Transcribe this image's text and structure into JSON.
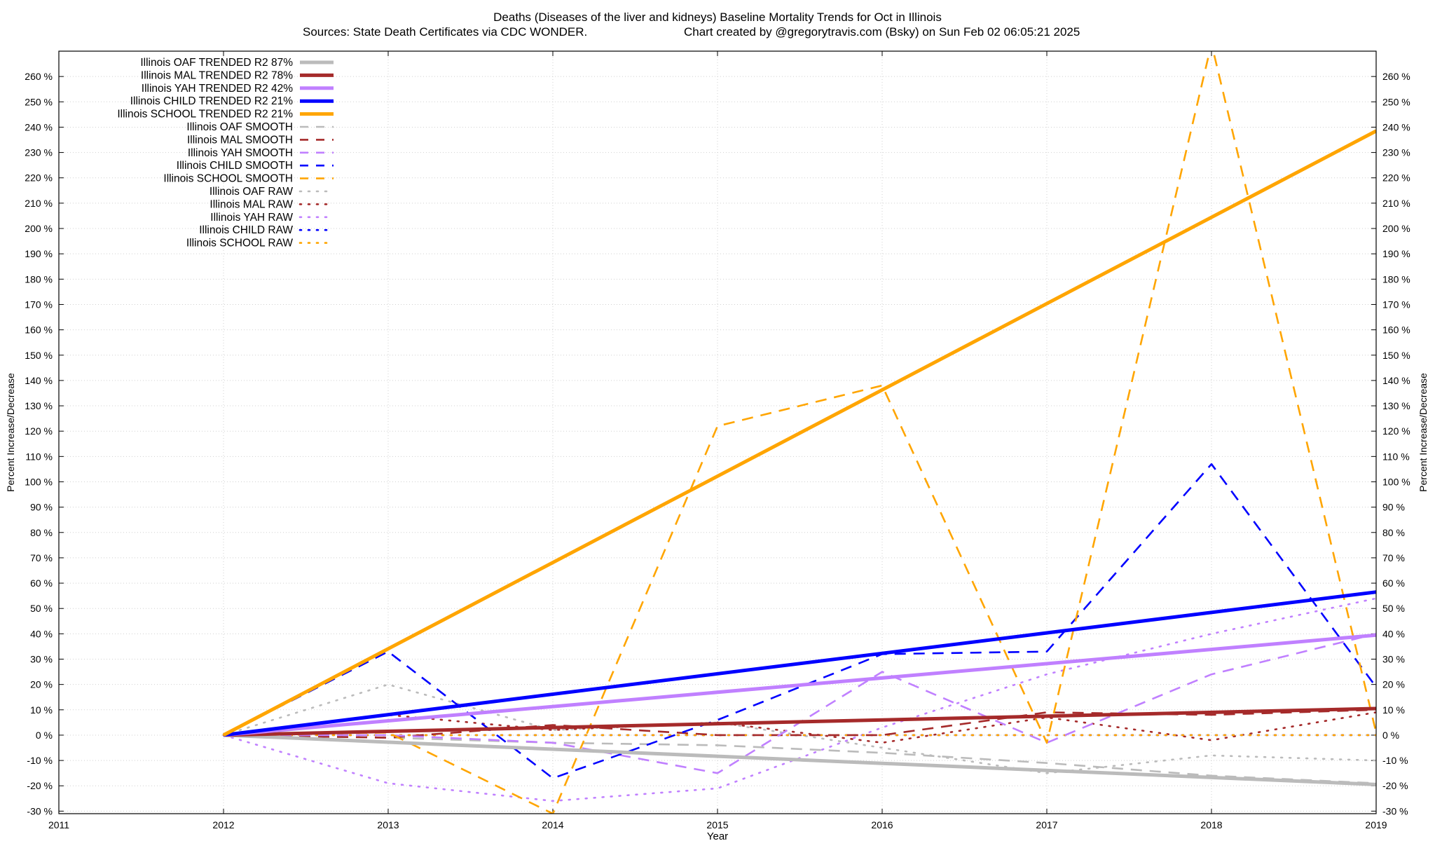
{
  "chart_data": {
    "type": "line",
    "title": "Deaths (Diseases of the liver and kidneys)  Baseline Mortality Trends for Oct in Illinois",
    "subtitle_left": "Sources: State Death Certificates via CDC WONDER.",
    "subtitle_right": "Chart created by @gregorytravis.com (Bsky) on Sun Feb 02 06:05:21 2025",
    "xlabel": "Year",
    "ylabel": "Percent Increase/Decrease",
    "y2label": "Percent Increase/Decrease",
    "xlim": [
      2011,
      2019
    ],
    "ylim": [
      -31,
      270
    ],
    "xticks": [
      2011,
      2012,
      2013,
      2014,
      2015,
      2016,
      2017,
      2018,
      2019
    ],
    "yticks": [
      -30,
      -20,
      -10,
      0,
      10,
      20,
      30,
      40,
      50,
      60,
      70,
      80,
      90,
      100,
      110,
      120,
      130,
      140,
      150,
      160,
      170,
      180,
      190,
      200,
      210,
      220,
      230,
      240,
      250,
      260
    ],
    "ytick_suffix": " %",
    "grid": true,
    "legend_position": "top-left",
    "series": [
      {
        "name": "Illinois OAF TRENDED R2  87%",
        "style": "solid",
        "color": "#bbbbbb",
        "x": [
          2012,
          2019
        ],
        "y": [
          0,
          -19.5
        ]
      },
      {
        "name": "Illinois MAL TRENDED R2  78%",
        "style": "solid",
        "color": "#a52a2a",
        "x": [
          2012,
          2019
        ],
        "y": [
          0,
          10.5
        ]
      },
      {
        "name": "Illinois YAH TRENDED R2  42%",
        "style": "solid",
        "color": "#c080ff",
        "x": [
          2012,
          2019
        ],
        "y": [
          0,
          39.5
        ]
      },
      {
        "name": "Illinois CHILD TRENDED R2  21%",
        "style": "solid",
        "color": "#0000ff",
        "x": [
          2012,
          2019
        ],
        "y": [
          0,
          56.5
        ]
      },
      {
        "name": "Illinois SCHOOL TRENDED R2  21%",
        "style": "solid",
        "color": "#ffa500",
        "x": [
          2012,
          2019
        ],
        "y": [
          0,
          238.5
        ]
      },
      {
        "name": "Illinois OAF SMOOTH",
        "style": "dashed",
        "color": "#bbbbbb",
        "x": [
          2012,
          2013,
          2014,
          2015,
          2016,
          2017,
          2018,
          2019
        ],
        "y": [
          0,
          -1,
          -3,
          -4,
          -7,
          -11,
          -16,
          -19
        ]
      },
      {
        "name": "Illinois MAL SMOOTH",
        "style": "dashed",
        "color": "#a52a2a",
        "x": [
          2012,
          2013,
          2014,
          2015,
          2016,
          2017,
          2018,
          2019
        ],
        "y": [
          0,
          -1,
          4,
          0,
          0,
          9,
          8,
          10
        ]
      },
      {
        "name": "Illinois YAH SMOOTH",
        "style": "dashed",
        "color": "#c080ff",
        "x": [
          2012,
          2013,
          2014,
          2015,
          2016,
          2017,
          2018,
          2019
        ],
        "y": [
          0,
          0,
          -3,
          -15,
          25,
          -3,
          24,
          40
        ]
      },
      {
        "name": "Illinois CHILD SMOOTH",
        "style": "dashed",
        "color": "#0000ff",
        "x": [
          2012,
          2013,
          2014,
          2015,
          2016,
          2017,
          2018,
          2019
        ],
        "y": [
          0,
          33,
          -17,
          6,
          32,
          33,
          107,
          19
        ]
      },
      {
        "name": "Illinois SCHOOL SMOOTH",
        "style": "dashed",
        "color": "#ffa500",
        "x": [
          2012,
          2013,
          2014,
          2015,
          2016,
          2017,
          2018,
          2019
        ],
        "y": [
          0,
          1,
          -31,
          122,
          138,
          -3,
          273,
          1
        ]
      },
      {
        "name": "Illinois OAF RAW",
        "style": "dotted",
        "color": "#bbbbbb",
        "x": [
          2012,
          2013,
          2014,
          2015,
          2016,
          2017,
          2018,
          2019
        ],
        "y": [
          0,
          20,
          2,
          5,
          -5,
          -15,
          -8,
          -10
        ]
      },
      {
        "name": "Illinois MAL RAW",
        "style": "dotted",
        "color": "#a52a2a",
        "x": [
          2012,
          2013,
          2014,
          2015,
          2016,
          2017,
          2018,
          2019
        ],
        "y": [
          0,
          8,
          2,
          5,
          -3,
          7,
          -2,
          9
        ]
      },
      {
        "name": "Illinois YAH RAW",
        "style": "dotted",
        "color": "#c080ff",
        "x": [
          2012,
          2013,
          2014,
          2015,
          2016,
          2017,
          2018,
          2019
        ],
        "y": [
          0,
          -19,
          -26,
          -21,
          3,
          24,
          40,
          54
        ]
      },
      {
        "name": "Illinois CHILD RAW",
        "style": "dotted",
        "color": "#0000ff",
        "x": [
          2012,
          2013,
          2014,
          2015,
          2016,
          2017,
          2018,
          2019
        ],
        "y": [
          0,
          0,
          0,
          0,
          0,
          0,
          0,
          0
        ]
      },
      {
        "name": "Illinois SCHOOL RAW",
        "style": "dotted",
        "color": "#ffa500",
        "x": [
          2012,
          2013,
          2014,
          2015,
          2016,
          2017,
          2018,
          2019
        ],
        "y": [
          0,
          0,
          0,
          0,
          0,
          0,
          0,
          0
        ]
      }
    ]
  }
}
